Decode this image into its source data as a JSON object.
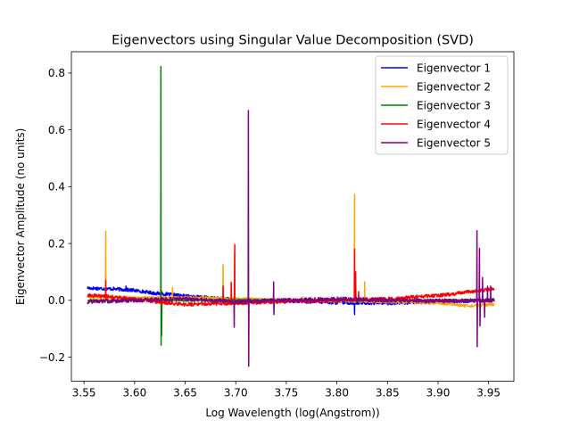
{
  "chart_data": {
    "type": "line",
    "title": "Eigenvectors using Singular Value Decomposition (SVD)",
    "xlabel": "Log Wavelength (log(Angstrom))",
    "ylabel": "Eigenvector Amplitude (no units)",
    "xlim": [
      3.5375,
      3.975
    ],
    "ylim": [
      -0.285,
      0.875
    ],
    "x_ticks": [
      3.55,
      3.6,
      3.65,
      3.7,
      3.75,
      3.8,
      3.85,
      3.9,
      3.95
    ],
    "x_tick_labels": [
      "3.55",
      "3.60",
      "3.65",
      "3.70",
      "3.75",
      "3.80",
      "3.85",
      "3.90",
      "3.95"
    ],
    "y_ticks": [
      -0.2,
      0.0,
      0.2,
      0.4,
      0.6,
      0.8
    ],
    "y_tick_labels": [
      "−0.2",
      "0.0",
      "0.2",
      "0.4",
      "0.6",
      "0.8"
    ],
    "grid": false,
    "legend_position": "top-right",
    "x_range": [
      3.5535,
      3.9555
    ],
    "series": [
      {
        "name": "Eigenvector 1",
        "color": "#0000ff",
        "baseline": [
          [
            3.5535,
            0.043
          ],
          [
            3.58,
            0.04
          ],
          [
            3.6,
            0.035
          ],
          [
            3.62,
            0.025
          ],
          [
            3.65,
            0.015
          ],
          [
            3.7,
            0.002
          ],
          [
            3.75,
            -0.002
          ],
          [
            3.8,
            -0.008
          ],
          [
            3.85,
            -0.01
          ],
          [
            3.9,
            -0.005
          ],
          [
            3.95,
            0.0
          ],
          [
            3.9555,
            0.0
          ]
        ],
        "noise": 0.006,
        "spikes": [
          [
            3.5915,
            0.05
          ],
          [
            3.627,
            0.03
          ],
          [
            3.8175,
            -0.05
          ],
          [
            3.8185,
            0.02
          ]
        ]
      },
      {
        "name": "Eigenvector 2",
        "color": "#ffa500",
        "baseline": [
          [
            3.5535,
            0.012
          ],
          [
            3.6,
            0.008
          ],
          [
            3.65,
            0.01
          ],
          [
            3.7,
            0.005
          ],
          [
            3.75,
            0.0
          ],
          [
            3.8,
            -0.002
          ],
          [
            3.85,
            -0.005
          ],
          [
            3.9,
            -0.01
          ],
          [
            3.93,
            -0.02
          ],
          [
            3.9555,
            -0.015
          ]
        ],
        "noise": 0.005,
        "spikes": [
          [
            3.5715,
            0.243
          ],
          [
            3.6375,
            0.045
          ],
          [
            3.6875,
            0.125
          ],
          [
            3.6955,
            0.065
          ],
          [
            3.699,
            0.165
          ],
          [
            3.7665,
            0.012
          ],
          [
            3.8175,
            0.373
          ],
          [
            3.8275,
            0.065
          ]
        ]
      },
      {
        "name": "Eigenvector 3",
        "color": "#008000",
        "baseline": [
          [
            3.5535,
            0.0
          ],
          [
            3.6,
            0.0
          ],
          [
            3.7,
            0.0
          ],
          [
            3.8,
            0.0
          ],
          [
            3.9555,
            0.0
          ]
        ],
        "noise": 0.004,
        "spikes": [
          [
            3.626,
            0.823
          ],
          [
            3.6262,
            -0.158
          ],
          [
            3.6267,
            -0.125
          ]
        ]
      },
      {
        "name": "Eigenvector 4",
        "color": "#ff0000",
        "baseline": [
          [
            3.5535,
            0.018
          ],
          [
            3.58,
            0.012
          ],
          [
            3.62,
            -0.005
          ],
          [
            3.65,
            -0.015
          ],
          [
            3.7,
            -0.01
          ],
          [
            3.75,
            -0.005
          ],
          [
            3.8,
            0.0
          ],
          [
            3.85,
            0.005
          ],
          [
            3.88,
            0.012
          ],
          [
            3.91,
            0.02
          ],
          [
            3.93,
            0.03
          ],
          [
            3.9555,
            0.04
          ]
        ],
        "noise": 0.006,
        "spikes": [
          [
            3.5715,
            0.07
          ],
          [
            3.6875,
            0.05
          ],
          [
            3.6955,
            0.062
          ],
          [
            3.699,
            0.196
          ],
          [
            3.8175,
            0.18
          ],
          [
            3.8185,
            0.1
          ],
          [
            3.8215,
            0.03
          ]
        ]
      },
      {
        "name": "Eigenvector 5",
        "color": "#800080",
        "baseline": [
          [
            3.5535,
            -0.005
          ],
          [
            3.6,
            0.0
          ],
          [
            3.65,
            0.005
          ],
          [
            3.7,
            -0.005
          ],
          [
            3.75,
            0.0
          ],
          [
            3.8,
            0.005
          ],
          [
            3.85,
            0.0
          ],
          [
            3.9,
            -0.002
          ],
          [
            3.9555,
            0.0
          ]
        ],
        "noise": 0.007,
        "spikes": [
          [
            3.6985,
            -0.095
          ],
          [
            3.7125,
            0.668
          ],
          [
            3.7128,
            -0.232
          ],
          [
            3.7375,
            0.065
          ],
          [
            3.7378,
            -0.05
          ],
          [
            3.9385,
            0.245
          ],
          [
            3.9387,
            -0.163
          ],
          [
            3.941,
            0.183
          ],
          [
            3.9415,
            -0.09
          ],
          [
            3.944,
            0.08
          ],
          [
            3.946,
            -0.06
          ],
          [
            3.949,
            0.05
          ],
          [
            3.952,
            0.05
          ]
        ]
      }
    ]
  }
}
